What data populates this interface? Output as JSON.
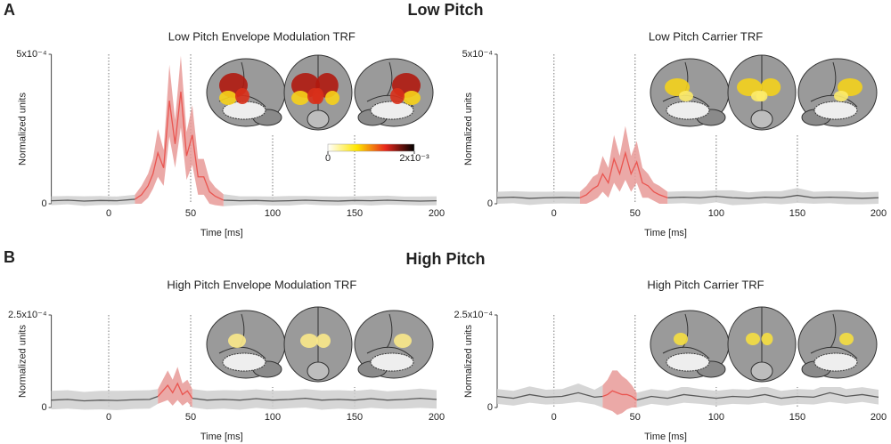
{
  "panels": [
    {
      "label": "A",
      "title": "Low Pitch"
    },
    {
      "label": "B",
      "title": "High Pitch"
    }
  ],
  "chart_data": [
    {
      "type": "line",
      "title": "Low Pitch Envelope Modulation TRF",
      "x_label": "Time [ms]",
      "y_label": "Normalized units",
      "x": [
        -35,
        -25,
        -15,
        -5,
        5,
        16,
        20,
        24,
        27,
        30,
        33.5,
        37,
        40.5,
        44,
        47.5,
        51,
        54.5,
        58,
        61.5,
        65,
        70,
        80,
        90,
        100,
        110,
        120,
        130,
        140,
        150,
        160,
        170,
        180,
        190,
        200
      ],
      "xlim": [
        -35,
        200
      ],
      "xticks": [
        0,
        50,
        100,
        150,
        200
      ],
      "ylim": [
        0,
        0.0005
      ],
      "yticks": [
        0,
        {
          "value": 0.0005,
          "label": "5x10⁻⁴"
        }
      ],
      "grid": "x",
      "colorbar": {
        "colors": [
          "#ffffff",
          "#ffe600",
          "#e8281c",
          "#000000"
        ],
        "ticks": [
          0,
          {
            "value": 0.002,
            "label": "2x10⁻³"
          }
        ]
      },
      "series": [
        {
          "color": "#5a5a5a",
          "band_color": "#cfcfcf",
          "values": [
            1e-05,
            1.2e-05,
            9e-06,
            1.1e-05,
            1e-05,
            1.5e-05,
            null,
            null,
            null,
            null,
            null,
            null,
            null,
            null,
            null,
            null,
            null,
            null,
            null,
            null,
            1.2e-05,
            1e-05,
            1.1e-05,
            9e-06,
            1e-05,
            1.2e-05,
            1e-05,
            9e-06,
            1.1e-05,
            1e-05,
            1.2e-05,
            1e-05,
            9e-06,
            1e-05
          ],
          "errors": [
            1.5e-05,
            1.4e-05,
            1.6e-05,
            1.5e-05,
            1.4e-05,
            1.5e-05,
            null,
            null,
            null,
            null,
            null,
            null,
            null,
            null,
            null,
            null,
            null,
            null,
            null,
            null,
            2e-05,
            1.5e-05,
            1.4e-05,
            1.5e-05,
            1.6e-05,
            1.4e-05,
            1.5e-05,
            1.5e-05,
            1.4e-05,
            1.6e-05,
            1.5e-05,
            1.4e-05,
            1.5e-05,
            1.5e-05
          ]
        },
        {
          "color": "#ea5550",
          "band_color": "#e89a98",
          "values": [
            null,
            null,
            null,
            null,
            null,
            1.5e-05,
            3e-05,
            6e-05,
            0.0001,
            0.00017,
            0.00012,
            0.000345,
            0.0002,
            0.000375,
            0.00016,
            0.00023,
            9e-05,
            9e-05,
            4e-05,
            2.5e-05,
            1.2e-05,
            null,
            null,
            null,
            null,
            null,
            null,
            null,
            null,
            null,
            null,
            null,
            null,
            null
          ],
          "errors": [
            null,
            null,
            null,
            null,
            null,
            1.5e-05,
            3e-05,
            4e-05,
            5e-05,
            8e-05,
            6e-05,
            0.00012,
            8e-05,
            0.00012,
            8e-05,
            0.0001,
            6e-05,
            6e-05,
            4e-05,
            3e-05,
            2e-05,
            null,
            null,
            null,
            null,
            null,
            null,
            null,
            null,
            null,
            null,
            null,
            null,
            null
          ]
        }
      ]
    },
    {
      "type": "line",
      "title": "Low Pitch Carrier TRF",
      "x_label": "Time [ms]",
      "y_label": "Normalized units",
      "x": [
        -35,
        -25,
        -15,
        -5,
        5,
        16,
        20,
        24,
        27,
        30,
        33.5,
        37,
        40.5,
        44,
        47.5,
        51,
        54.5,
        58,
        61.5,
        65,
        70,
        80,
        90,
        100,
        110,
        120,
        130,
        140,
        150,
        160,
        170,
        180,
        190,
        200
      ],
      "xlim": [
        -35,
        200
      ],
      "xticks": [
        0,
        50,
        100,
        150,
        200
      ],
      "ylim": [
        0,
        0.0005
      ],
      "yticks": [
        0,
        {
          "value": 0.0005,
          "label": "5x10⁻⁴"
        }
      ],
      "grid": "x",
      "series": [
        {
          "color": "#5a5a5a",
          "band_color": "#cfcfcf",
          "values": [
            2e-05,
            2.2e-05,
            1.8e-05,
            2e-05,
            2.1e-05,
            2e-05,
            null,
            null,
            null,
            null,
            null,
            null,
            null,
            null,
            null,
            null,
            null,
            null,
            null,
            null,
            2e-05,
            2.2e-05,
            2e-05,
            2.5e-05,
            2e-05,
            1.8e-05,
            2.2e-05,
            2e-05,
            2.8e-05,
            2e-05,
            2.2e-05,
            2e-05,
            1.8e-05,
            2e-05
          ],
          "errors": [
            2e-05,
            2e-05,
            2.2e-05,
            2e-05,
            2e-05,
            2e-05,
            null,
            null,
            null,
            null,
            null,
            null,
            null,
            null,
            null,
            null,
            null,
            null,
            null,
            null,
            2e-05,
            2e-05,
            2.2e-05,
            2e-05,
            2.5e-05,
            2e-05,
            2e-05,
            2.2e-05,
            2.5e-05,
            2e-05,
            2e-05,
            2.2e-05,
            2e-05,
            2e-05
          ]
        },
        {
          "color": "#ea5550",
          "band_color": "#e89a98",
          "values": [
            null,
            null,
            null,
            null,
            null,
            2e-05,
            3e-05,
            5e-05,
            6e-05,
            0.0001,
            7e-05,
            0.00015,
            0.0001,
            0.00017,
            0.0001,
            0.00014,
            7e-05,
            6e-05,
            4e-05,
            3e-05,
            2e-05,
            null,
            null,
            null,
            null,
            null,
            null,
            null,
            null,
            null,
            null,
            null,
            null,
            null
          ],
          "errors": [
            null,
            null,
            null,
            null,
            null,
            2e-05,
            3e-05,
            4e-05,
            4e-05,
            6e-05,
            5e-05,
            8e-05,
            6e-05,
            9e-05,
            6e-05,
            7e-05,
            5e-05,
            4e-05,
            3e-05,
            3e-05,
            2e-05,
            null,
            null,
            null,
            null,
            null,
            null,
            null,
            null,
            null,
            null,
            null,
            null,
            null
          ]
        }
      ]
    },
    {
      "type": "line",
      "title": "High Pitch Envelope Modulation TRF",
      "x_label": "Time [ms]",
      "y_label": "Normalized units",
      "x": [
        -35,
        -25,
        -15,
        -5,
        5,
        15,
        25,
        30,
        33,
        36,
        39,
        42,
        45,
        48,
        51,
        60,
        70,
        80,
        90,
        100,
        110,
        120,
        130,
        140,
        150,
        160,
        170,
        180,
        190,
        200
      ],
      "xlim": [
        -35,
        200
      ],
      "xticks": [
        0,
        50,
        100,
        150,
        200
      ],
      "ylim": [
        0,
        0.00025
      ],
      "yticks": [
        0,
        {
          "value": 0.00025,
          "label": "2.5x10⁻⁴"
        }
      ],
      "grid": "x",
      "series": [
        {
          "color": "#5a5a5a",
          "band_color": "#cfcfcf",
          "values": [
            2e-05,
            2.2e-05,
            1.8e-05,
            2e-05,
            1.9e-05,
            2.1e-05,
            2.2e-05,
            3e-05,
            null,
            null,
            null,
            null,
            null,
            null,
            2.5e-05,
            2e-05,
            2.2e-05,
            2e-05,
            2.4e-05,
            2e-05,
            2.2e-05,
            2.5e-05,
            2e-05,
            2.2e-05,
            2e-05,
            2.4e-05,
            2e-05,
            2.2e-05,
            2.5e-05,
            2.2e-05
          ],
          "errors": [
            2.5e-05,
            2.5e-05,
            2.4e-05,
            2.5e-05,
            2.6e-05,
            2.5e-05,
            2.5e-05,
            2e-05,
            null,
            null,
            null,
            null,
            null,
            null,
            2.5e-05,
            2.5e-05,
            2.5e-05,
            2.6e-05,
            2.5e-05,
            2.5e-05,
            2.4e-05,
            2.5e-05,
            2.6e-05,
            2.5e-05,
            2.5e-05,
            2.5e-05,
            2.4e-05,
            2.5e-05,
            2.6e-05,
            2.5e-05
          ]
        },
        {
          "color": "#ea5550",
          "band_color": "#e89a98",
          "values": [
            null,
            null,
            null,
            null,
            null,
            null,
            null,
            3e-05,
            4.5e-05,
            6e-05,
            4e-05,
            6.5e-05,
            3.5e-05,
            4.5e-05,
            2.5e-05,
            null,
            null,
            null,
            null,
            null,
            null,
            null,
            null,
            null,
            null,
            null,
            null,
            null,
            null,
            null
          ],
          "errors": [
            null,
            null,
            null,
            null,
            null,
            null,
            null,
            2e-05,
            3e-05,
            4e-05,
            3.5e-05,
            4.5e-05,
            3e-05,
            3e-05,
            2.5e-05,
            null,
            null,
            null,
            null,
            null,
            null,
            null,
            null,
            null,
            null,
            null,
            null,
            null,
            null,
            null
          ]
        }
      ]
    },
    {
      "type": "line",
      "title": "High Pitch Carrier TRF",
      "x_label": "Time [ms]",
      "y_label": "Normalized units",
      "x": [
        -35,
        -25,
        -15,
        -5,
        5,
        15,
        25,
        30,
        33,
        36,
        39,
        42,
        45,
        48,
        51,
        60,
        70,
        80,
        90,
        100,
        110,
        120,
        130,
        140,
        150,
        160,
        170,
        180,
        190,
        200
      ],
      "xlim": [
        -35,
        200
      ],
      "xticks": [
        0,
        50,
        100,
        150,
        200
      ],
      "ylim": [
        0,
        0.00025
      ],
      "yticks": [
        0,
        {
          "value": 0.00025,
          "label": "2.5x10⁻⁴"
        }
      ],
      "grid": "x",
      "series": [
        {
          "color": "#5a5a5a",
          "band_color": "#cfcfcf",
          "values": [
            3e-05,
            2.5e-05,
            3.5e-05,
            2.8e-05,
            3e-05,
            4e-05,
            2.8e-05,
            3e-05,
            null,
            null,
            null,
            null,
            null,
            null,
            2e-05,
            3e-05,
            2.5e-05,
            3.5e-05,
            3e-05,
            2.5e-05,
            3e-05,
            2.8e-05,
            3.5e-05,
            2.5e-05,
            3e-05,
            2.8e-05,
            4e-05,
            3e-05,
            3.5e-05,
            2.8e-05
          ],
          "errors": [
            2e-05,
            2e-05,
            2.2e-05,
            2e-05,
            2e-05,
            2.5e-05,
            2e-05,
            3e-05,
            null,
            null,
            null,
            null,
            null,
            null,
            2e-05,
            2e-05,
            2e-05,
            2.2e-05,
            2e-05,
            2e-05,
            2e-05,
            2e-05,
            2.2e-05,
            2e-05,
            2e-05,
            2e-05,
            2.5e-05,
            2e-05,
            2e-05,
            2e-05
          ]
        },
        {
          "color": "#ea5550",
          "band_color": "#e89a98",
          "values": [
            null,
            null,
            null,
            null,
            null,
            null,
            null,
            3e-05,
            3.5e-05,
            4.5e-05,
            4e-05,
            3.5e-05,
            3.5e-05,
            3e-05,
            2e-05,
            null,
            null,
            null,
            null,
            null,
            null,
            null,
            null,
            null,
            null,
            null,
            null,
            null,
            null,
            null
          ],
          "errors": [
            null,
            null,
            null,
            null,
            null,
            null,
            null,
            3e-05,
            4e-05,
            5.5e-05,
            6e-05,
            5e-05,
            4e-05,
            3e-05,
            2e-05,
            null,
            null,
            null,
            null,
            null,
            null,
            null,
            null,
            null,
            null,
            null,
            null,
            null,
            null,
            null
          ]
        }
      ]
    }
  ]
}
